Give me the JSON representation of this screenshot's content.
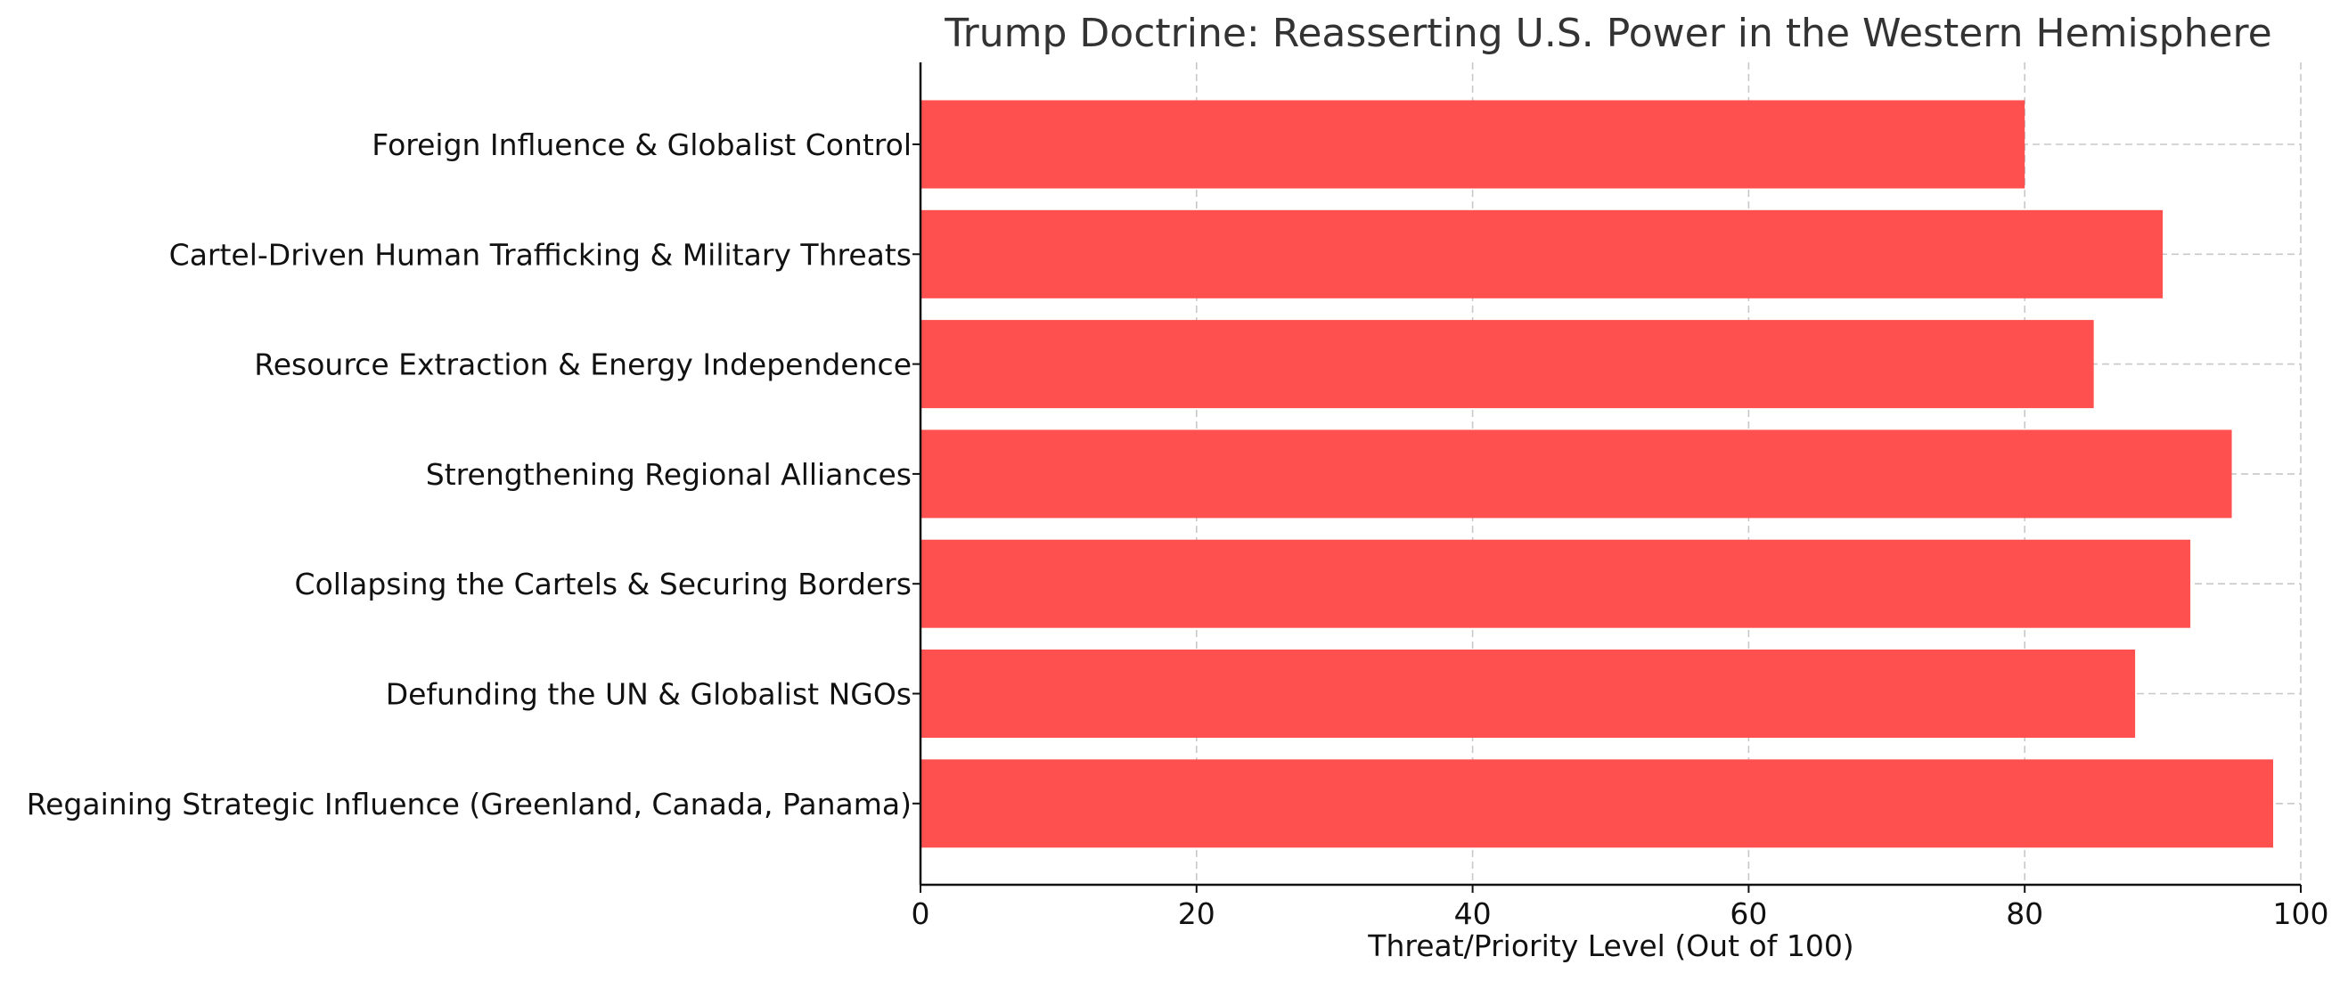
{
  "chart_data": {
    "type": "bar",
    "orientation": "horizontal",
    "title": "Trump Doctrine: Reasserting U.S. Power in the Western Hemisphere",
    "xlabel": "Threat/Priority Level (Out of 100)",
    "ylabel": "",
    "xlim": [
      0,
      100
    ],
    "xticks": [
      0,
      20,
      40,
      60,
      80,
      100
    ],
    "grid": true,
    "bar_color": "#ff4c4c",
    "categories": [
      "Foreign Influence & Globalist Control",
      "Cartel-Driven Human Trafficking & Military Threats",
      "Resource Extraction & Energy Independence",
      "Strengthening Regional Alliances",
      "Collapsing the Cartels & Securing Borders",
      "Defunding the UN & Globalist NGOs",
      "Regaining Strategic Influence (Greenland, Canada, Panama)"
    ],
    "values": [
      80,
      90,
      85,
      95,
      92,
      88,
      98
    ]
  }
}
